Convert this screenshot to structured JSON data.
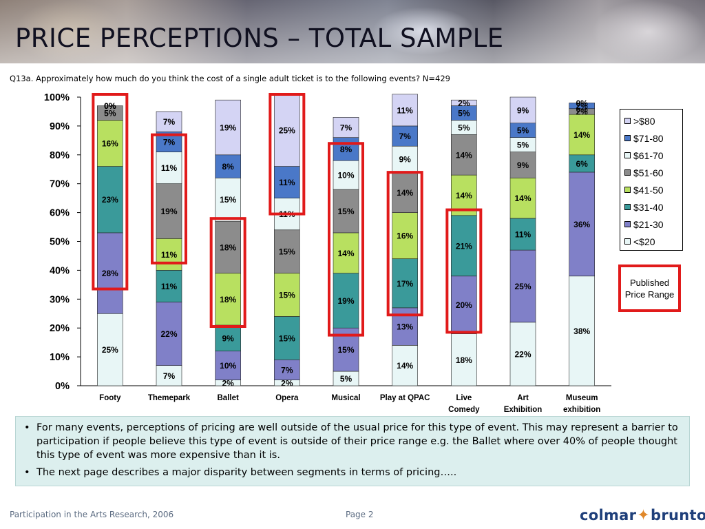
{
  "header": {
    "title": "PRICE PERCEPTIONS – TOTAL SAMPLE",
    "question": "Q13a.  Approximately how much do you think the cost of a single adult ticket is to the following events? N=429"
  },
  "published_label": "Published Price Range",
  "notes": [
    "For many events, perceptions of pricing are well outside of the usual price for this type of event. This may represent a barrier to participation if people believe this type of event is outside of their price range e.g. the Ballet where over 40% of people thought this type of event was more expensive than it is.",
    "The next page describes a major disparity between segments in terms of pricing….."
  ],
  "footer": {
    "source": "Participation in the Arts Research, 2006",
    "page": "Page 2",
    "logo_left": "colmar",
    "logo_right": "brunton"
  },
  "colors": {
    "highlight": "#e11a1a",
    "notes_bg": "#dcefee"
  },
  "chart_data": {
    "type": "bar",
    "stacked": true,
    "categories": [
      [
        "Footy"
      ],
      [
        "Themepark"
      ],
      [
        "Ballet"
      ],
      [
        "Opera"
      ],
      [
        "Musical"
      ],
      [
        "Play at QPAC"
      ],
      [
        "Live",
        "Comedy"
      ],
      [
        "Art",
        "Exhibition"
      ],
      [
        "Museum",
        "exhibition"
      ]
    ],
    "ylim": [
      0,
      100
    ],
    "yticks": [
      "0%",
      "10%",
      "20%",
      "30%",
      "40%",
      "50%",
      "60%",
      "70%",
      "80%",
      "90%",
      "100%"
    ],
    "legend_position": "right",
    "series": [
      {
        "name": "<$20",
        "color": "#e8f6f6",
        "values": [
          25,
          7,
          2,
          2,
          5,
          14,
          18,
          22,
          38
        ]
      },
      {
        "name": "$21-30",
        "color": "#8080c8",
        "values": [
          28,
          22,
          10,
          7,
          15,
          13,
          20,
          25,
          36
        ]
      },
      {
        "name": "$31-40",
        "color": "#3a9a9a",
        "values": [
          23,
          11,
          9,
          15,
          19,
          17,
          21,
          11,
          6
        ]
      },
      {
        "name": "$41-50",
        "color": "#b8e060",
        "values": [
          16,
          11,
          18,
          15,
          14,
          16,
          14,
          14,
          14
        ]
      },
      {
        "name": "$51-60",
        "color": "#8c8c8c",
        "values": [
          5,
          19,
          18,
          15,
          15,
          14,
          14,
          9,
          2
        ]
      },
      {
        "name": "$61-70",
        "color": "#e8f6f6",
        "values": [
          0,
          11,
          15,
          11,
          10,
          9,
          5,
          5,
          0
        ]
      },
      {
        "name": "$71-80",
        "color": "#4a78c8",
        "values": [
          0,
          7,
          8,
          11,
          8,
          7,
          5,
          5,
          2
        ]
      },
      {
        "name": ">$80",
        "color": "#d4d4f4",
        "values": [
          0,
          7,
          19,
          25,
          7,
          11,
          2,
          9,
          0
        ]
      }
    ],
    "labels": [
      [
        "25%",
        "28%",
        "23%",
        "16%",
        "5%",
        "0%",
        "0%",
        "0%"
      ],
      [
        "7%",
        "22%",
        "11%",
        "11%",
        "19%",
        "11%",
        "7%",
        "7%"
      ],
      [
        "2%",
        "10%",
        "9%",
        "18%",
        "18%",
        "15%",
        "8%",
        "19%"
      ],
      [
        "2%",
        "7%",
        "15%",
        "15%",
        "15%",
        "11%",
        "11%",
        "25%"
      ],
      [
        "5%",
        "15%",
        "19%",
        "14%",
        "15%",
        "10%",
        "8%",
        "7%"
      ],
      [
        "14%",
        "13%",
        "17%",
        "16%",
        "14%",
        "9%",
        "7%",
        "11%"
      ],
      [
        "18%",
        "20%",
        "21%",
        "14%",
        "14%",
        "5%",
        "5%",
        "2%"
      ],
      [
        "22%",
        "25%",
        "11%",
        "14%",
        "9%",
        "5%",
        "5%",
        "9%"
      ],
      [
        "38%",
        "36%",
        "6%",
        "14%",
        "2%",
        "0%",
        "2%",
        "0%"
      ]
    ],
    "highlights": [
      {
        "category": "Footy",
        "from": 34,
        "to": 100
      },
      {
        "category": "Themepark",
        "from": 43,
        "to": 86
      },
      {
        "category": "Ballet",
        "from": 21,
        "to": 57
      },
      {
        "category": "Opera",
        "from": 60,
        "to": 100
      },
      {
        "category": "Musical",
        "from": 18,
        "to": 83
      },
      {
        "category": "Play at QPAC",
        "from": 25,
        "to": 73
      },
      {
        "category": "Live Comedy",
        "from": 19,
        "to": 60
      }
    ]
  }
}
